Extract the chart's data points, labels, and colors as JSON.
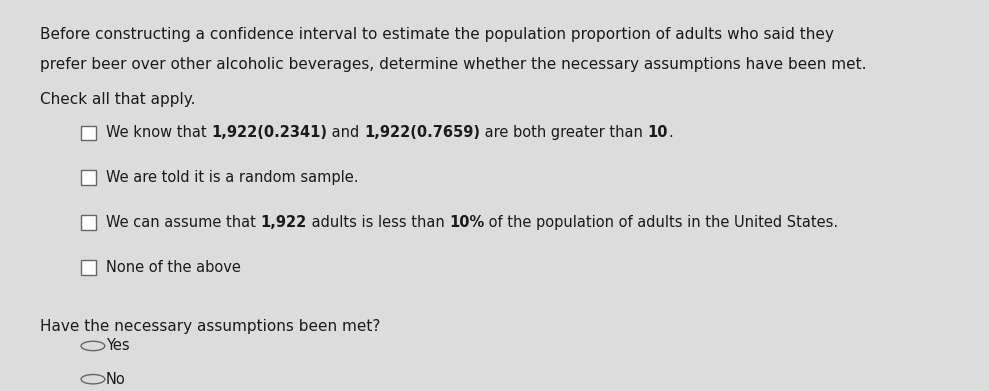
{
  "background_color": "#dcdcdc",
  "fig_width": 9.89,
  "fig_height": 3.91,
  "intro_text_line1": "Before constructing a confidence interval to estimate the population proportion of adults who said they",
  "intro_text_line2": "prefer beer over other alcoholic beverages, determine whether the necessary assumptions have been met.",
  "check_all_label": "Check all that apply.",
  "checkbox_bold_parts": [
    {
      "text": "We know that 1,922(0.2341) and 1,922(0.7659) are both greater than 10.",
      "segments": [
        [
          "We know that ",
          false
        ],
        [
          "1,922(0.2341)",
          true
        ],
        [
          " and ",
          false
        ],
        [
          "1,922(0.7659)",
          true
        ],
        [
          " are both greater than ",
          false
        ],
        [
          "10",
          true
        ],
        [
          ".",
          false
        ]
      ]
    },
    {
      "text": "We are told it is a random sample.",
      "segments": [
        [
          "We are told it is a random sample.",
          false
        ]
      ]
    },
    {
      "text": "We can assume that 1,922 adults is less than 10% of the population of adults in the United States.",
      "segments": [
        [
          "We can assume that ",
          false
        ],
        [
          "1,922",
          true
        ],
        [
          " adults is less than ",
          false
        ],
        [
          "10%",
          true
        ],
        [
          " of the population of adults in the United States.",
          false
        ]
      ]
    },
    {
      "text": "None of the above",
      "segments": [
        [
          "None of the above",
          false
        ]
      ]
    }
  ],
  "question_text": "Have the necessary assumptions been met?",
  "radio_options": [
    "Yes",
    "No"
  ],
  "text_color": "#1a1a1a",
  "font_size_body": 11,
  "font_size_options": 10.5
}
